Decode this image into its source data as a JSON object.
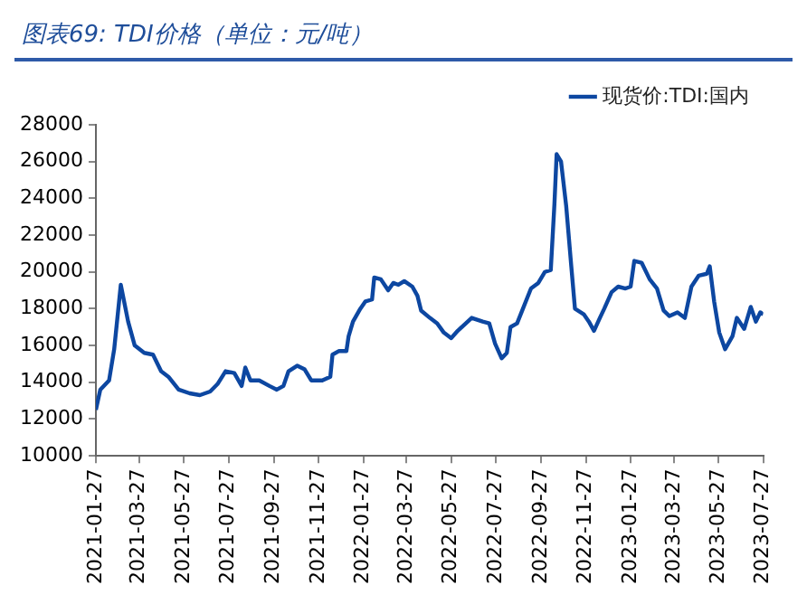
{
  "chart_data": {
    "type": "line",
    "title": "图表69:  TDI价格（单位：元/吨）",
    "x": [
      "2021-01-27",
      "2021-02-02",
      "2021-02-14",
      "2021-02-21",
      "2021-03-02",
      "2021-03-12",
      "2021-03-21",
      "2021-04-03",
      "2021-04-15",
      "2021-04-26",
      "2021-05-06",
      "2021-05-20",
      "2021-06-04",
      "2021-06-18",
      "2021-07-02",
      "2021-07-12",
      "2021-07-23",
      "2021-08-04",
      "2021-08-14",
      "2021-08-19",
      "2021-08-26",
      "2021-09-07",
      "2021-09-21",
      "2021-10-01",
      "2021-10-10",
      "2021-10-17",
      "2021-10-29",
      "2021-11-08",
      "2021-11-17",
      "2021-12-02",
      "2021-12-13",
      "2021-12-16",
      "2021-12-25",
      "2022-01-04",
      "2022-01-07",
      "2022-01-13",
      "2022-01-23",
      "2022-01-30",
      "2022-02-08",
      "2022-02-11",
      "2022-02-20",
      "2022-03-02",
      "2022-03-09",
      "2022-03-16",
      "2022-03-24",
      "2022-04-04",
      "2022-04-11",
      "2022-04-16",
      "2022-04-28",
      "2022-05-08",
      "2022-05-17",
      "2022-05-27",
      "2022-06-05",
      "2022-06-24",
      "2022-07-09",
      "2022-07-18",
      "2022-07-26",
      "2022-08-04",
      "2022-08-11",
      "2022-08-16",
      "2022-08-25",
      "2022-09-02",
      "2022-09-13",
      "2022-09-23",
      "2022-10-02",
      "2022-10-10",
      "2022-10-15",
      "2022-10-18",
      "2022-10-24",
      "2022-10-31",
      "2022-11-07",
      "2022-11-12",
      "2022-11-24",
      "2022-12-01",
      "2022-12-08",
      "2022-12-16",
      "2022-12-22",
      "2023-01-01",
      "2023-01-10",
      "2023-01-20",
      "2023-01-27",
      "2023-02-01",
      "2023-02-11",
      "2023-02-22",
      "2023-03-04",
      "2023-03-13",
      "2023-03-21",
      "2023-04-01",
      "2023-04-11",
      "2023-04-20",
      "2023-04-30",
      "2023-05-11",
      "2023-05-15",
      "2023-05-21",
      "2023-05-28",
      "2023-06-05",
      "2023-06-15",
      "2023-06-21",
      "2023-07-01",
      "2023-07-10",
      "2023-07-17",
      "2023-07-23",
      "2023-07-27"
    ],
    "series": [
      {
        "name": "现货价:TDI:国内",
        "color": "#0d47a1",
        "values": [
          12500,
          13600,
          14100,
          15800,
          19300,
          17300,
          16000,
          15600,
          15500,
          14600,
          14300,
          13600,
          13400,
          13300,
          13500,
          13900,
          14600,
          14500,
          13800,
          14800,
          14100,
          14100,
          13800,
          13600,
          13800,
          14600,
          14900,
          14700,
          14100,
          14100,
          14300,
          15500,
          15700,
          15700,
          16500,
          17300,
          18000,
          18400,
          18500,
          19700,
          19600,
          19000,
          19400,
          19300,
          19500,
          19200,
          18700,
          17900,
          17500,
          17200,
          16700,
          16400,
          16800,
          17500,
          17300,
          17200,
          16100,
          15300,
          15600,
          17000,
          17200,
          18000,
          19100,
          19400,
          20000,
          20100,
          23700,
          26400,
          26000,
          23600,
          20300,
          18000,
          17700,
          17300,
          16800,
          17500,
          18000,
          18900,
          19200,
          19100,
          19200,
          20600,
          20500,
          19600,
          19100,
          17900,
          17600,
          17800,
          17500,
          19200,
          19800,
          19900,
          20300,
          18400,
          16700,
          15800,
          16500,
          17500,
          16900,
          18100,
          17300,
          17800,
          17700
        ]
      }
    ],
    "xlim": [
      "2021-01-27",
      "2023-07-27"
    ],
    "xticks": [
      "2021-01-27",
      "2021-03-27",
      "2021-05-27",
      "2021-07-27",
      "2021-09-27",
      "2021-11-27",
      "2022-01-27",
      "2022-03-27",
      "2022-05-27",
      "2022-07-27",
      "2022-09-27",
      "2022-11-27",
      "2023-01-27",
      "2023-03-27",
      "2023-05-27",
      "2023-07-27"
    ],
    "ylim": [
      10000,
      28000
    ],
    "yticks": [
      10000,
      12000,
      14000,
      16000,
      18000,
      20000,
      22000,
      24000,
      26000,
      28000
    ],
    "grid": false,
    "legend": "top right",
    "marker": "none",
    "line_style": "solid"
  }
}
